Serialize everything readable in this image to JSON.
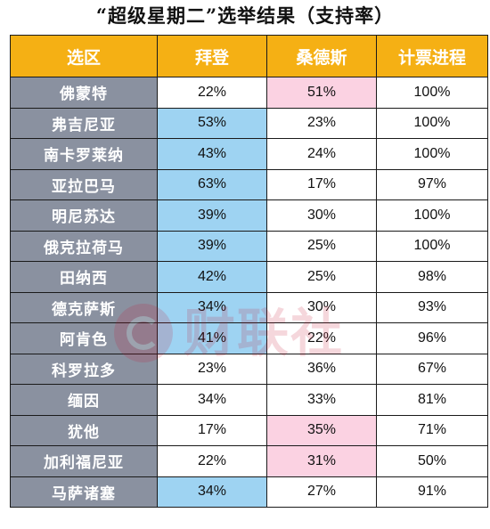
{
  "title": "“超级星期二”选举结果（支持率）",
  "headers": [
    "选区",
    "拜登",
    "桑德斯",
    "计票进程"
  ],
  "rows": [
    {
      "region": "佛蒙特",
      "biden": "22%",
      "sanders": "51%",
      "progress": "100%",
      "winner": "sanders"
    },
    {
      "region": "弗吉尼亚",
      "biden": "53%",
      "sanders": "23%",
      "progress": "100%",
      "winner": "biden"
    },
    {
      "region": "南卡罗莱纳",
      "biden": "43%",
      "sanders": "24%",
      "progress": "100%",
      "winner": "biden"
    },
    {
      "region": "亚拉巴马",
      "biden": "63%",
      "sanders": "17%",
      "progress": "97%",
      "winner": "biden"
    },
    {
      "region": "明尼苏达",
      "biden": "39%",
      "sanders": "30%",
      "progress": "100%",
      "winner": "biden"
    },
    {
      "region": "俄克拉荷马",
      "biden": "39%",
      "sanders": "25%",
      "progress": "100%",
      "winner": "biden"
    },
    {
      "region": "田纳西",
      "biden": "42%",
      "sanders": "25%",
      "progress": "98%",
      "winner": "biden"
    },
    {
      "region": "德克萨斯",
      "biden": "34%",
      "sanders": "30%",
      "progress": "93%",
      "winner": "biden"
    },
    {
      "region": "阿肯色",
      "biden": "41%",
      "sanders": "22%",
      "progress": "96%",
      "winner": "biden"
    },
    {
      "region": "科罗拉多",
      "biden": "23%",
      "sanders": "36%",
      "progress": "67%",
      "winner": "none"
    },
    {
      "region": "缅因",
      "biden": "34%",
      "sanders": "33%",
      "progress": "81%",
      "winner": "none"
    },
    {
      "region": "犹他",
      "biden": "17%",
      "sanders": "35%",
      "progress": "71%",
      "winner": "sanders"
    },
    {
      "region": "加利福尼亚",
      "biden": "22%",
      "sanders": "31%",
      "progress": "50%",
      "winner": "sanders"
    },
    {
      "region": "马萨诸塞",
      "biden": "34%",
      "sanders": "27%",
      "progress": "91%",
      "winner": "biden"
    }
  ],
  "colors": {
    "header_bg": "#f5b014",
    "region_bg": "#8a91a0",
    "biden_highlight": "#9ed3f2",
    "sanders_highlight": "#fbd2e2"
  },
  "watermark": {
    "icon": "cls-logo-icon",
    "text": "财联社"
  }
}
